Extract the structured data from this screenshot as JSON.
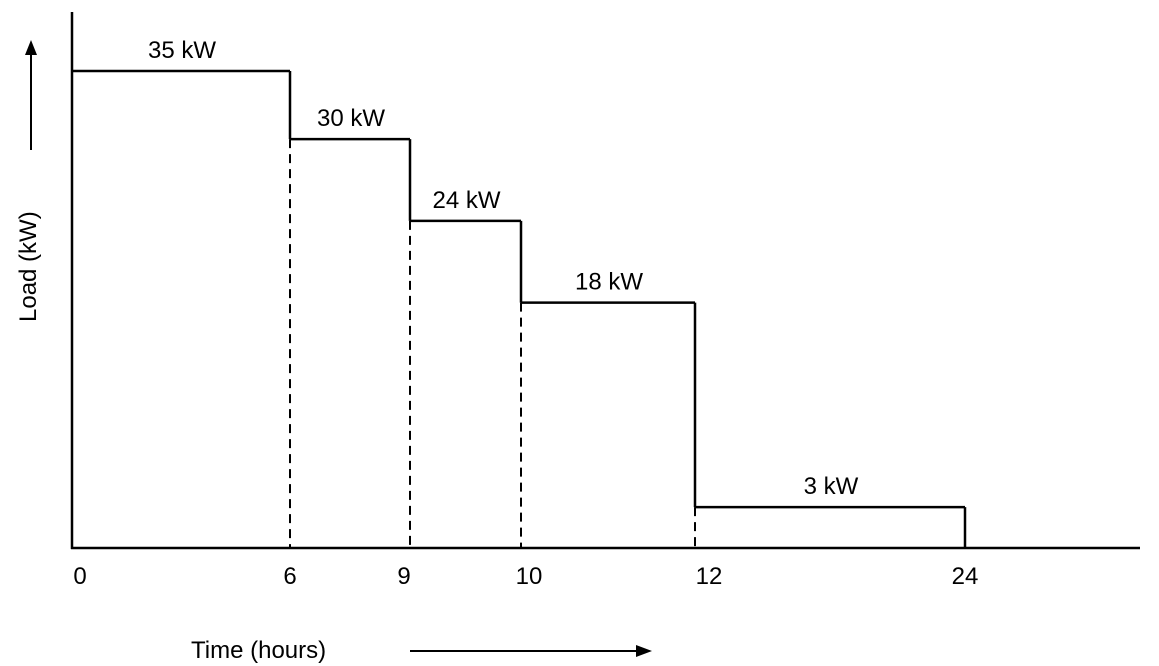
{
  "chart_data": {
    "type": "line",
    "step": true,
    "xlabel": "Time (hours)",
    "ylabel": "Load (kW)",
    "x_ticks": [
      0,
      6,
      9,
      10,
      12,
      24
    ],
    "segments": [
      {
        "start": 0,
        "end": 6,
        "value": 35,
        "label": "35 kW"
      },
      {
        "start": 6,
        "end": 9,
        "value": 30,
        "label": "30 kW"
      },
      {
        "start": 9,
        "end": 10,
        "value": 24,
        "label": "24 kW"
      },
      {
        "start": 10,
        "end": 12,
        "value": 18,
        "label": "18 kW"
      },
      {
        "start": 12,
        "end": 24,
        "value": 3,
        "label": "3 kW"
      }
    ],
    "grid": false,
    "legend": "none",
    "colors": {
      "line": "#000000",
      "background": "#ffffff"
    }
  }
}
